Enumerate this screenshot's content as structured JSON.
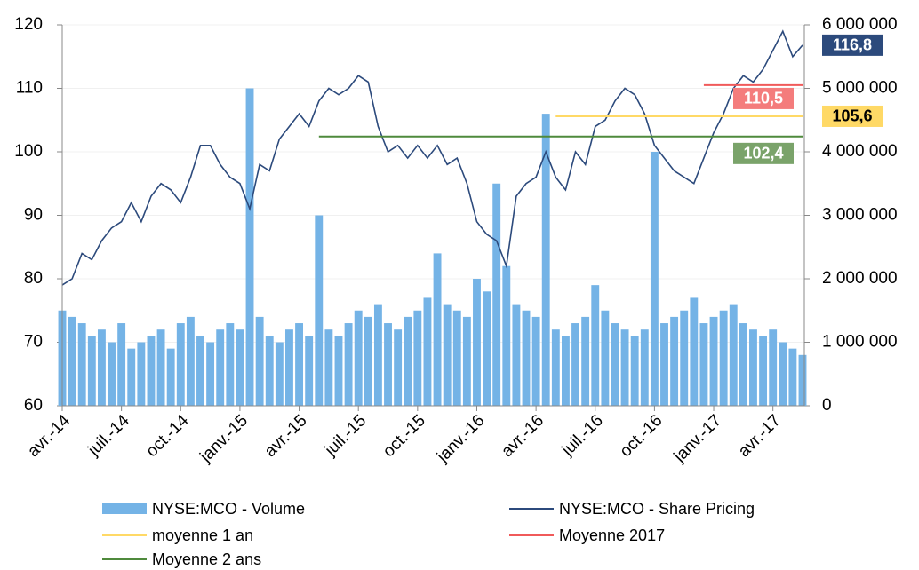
{
  "chart_data": {
    "type": "bar-line",
    "categories": [
      "avr.-14",
      null,
      null,
      null,
      null,
      null,
      "juil.-14",
      null,
      null,
      null,
      null,
      null,
      "oct.-14",
      null,
      null,
      null,
      null,
      null,
      "janv.-15",
      null,
      null,
      null,
      null,
      null,
      "avr.-15",
      null,
      null,
      null,
      null,
      null,
      "juil.-15",
      null,
      null,
      null,
      null,
      null,
      "oct.-15",
      null,
      null,
      null,
      null,
      null,
      "janv.-16",
      null,
      null,
      null,
      null,
      null,
      "avr.-16",
      null,
      null,
      null,
      null,
      null,
      "juil.-16",
      null,
      null,
      null,
      null,
      null,
      "oct.-16",
      null,
      null,
      null,
      null,
      null,
      "janv.-17",
      null,
      null,
      null,
      null,
      null,
      "avr.-17",
      null,
      null,
      null
    ],
    "series": [
      {
        "name": "NYSE:MCO - Volume",
        "type": "bar",
        "axis": "y2",
        "color": "#74b3e6",
        "values": [
          1500000,
          1400000,
          1300000,
          1100000,
          1200000,
          1000000,
          1300000,
          900000,
          1000000,
          1100000,
          1200000,
          900000,
          1300000,
          1400000,
          1100000,
          1000000,
          1200000,
          1300000,
          1200000,
          5000000,
          1400000,
          1100000,
          1000000,
          1200000,
          1300000,
          1100000,
          3000000,
          1200000,
          1100000,
          1300000,
          1500000,
          1400000,
          1600000,
          1300000,
          1200000,
          1400000,
          1500000,
          1700000,
          2400000,
          1600000,
          1500000,
          1400000,
          2000000,
          1800000,
          3500000,
          2200000,
          1600000,
          1500000,
          1400000,
          4600000,
          1200000,
          1100000,
          1300000,
          1400000,
          1900000,
          1500000,
          1300000,
          1200000,
          1100000,
          1200000,
          4000000,
          1300000,
          1400000,
          1500000,
          1700000,
          1300000,
          1400000,
          1500000,
          1600000,
          1300000,
          1200000,
          1100000,
          1200000,
          1000000,
          900000,
          800000
        ]
      },
      {
        "name": "NYSE:MCO - Share Pricing",
        "type": "line",
        "color": "#2c4a7c",
        "label_color": "#2c4a7c",
        "value_label": "116,8",
        "values": [
          79,
          80,
          84,
          83,
          86,
          88,
          89,
          92,
          89,
          93,
          95,
          94,
          92,
          96,
          101,
          101,
          98,
          96,
          95,
          91,
          98,
          97,
          102,
          104,
          106,
          104,
          108,
          110,
          109,
          110,
          112,
          111,
          104,
          100,
          101,
          99,
          101,
          99,
          101,
          98,
          99,
          95,
          89,
          87,
          86,
          82,
          93,
          95,
          96,
          100,
          96,
          94,
          100,
          98,
          104,
          105,
          108,
          110,
          109,
          106,
          101,
          99,
          97,
          96,
          95,
          99,
          103,
          106,
          110,
          112,
          111,
          113,
          116,
          119,
          115,
          116.8
        ]
      },
      {
        "name": "moyenne 1 an",
        "type": "line",
        "color": "#ffd966",
        "label_color": "#ffd966",
        "value_label": "105,6",
        "values": [
          null,
          null,
          null,
          null,
          null,
          null,
          null,
          null,
          null,
          null,
          null,
          null,
          null,
          null,
          null,
          null,
          null,
          null,
          null,
          null,
          null,
          null,
          null,
          null,
          null,
          null,
          null,
          null,
          null,
          null,
          null,
          null,
          null,
          null,
          null,
          null,
          null,
          null,
          null,
          null,
          null,
          null,
          null,
          null,
          null,
          null,
          null,
          null,
          null,
          null,
          105.6,
          105.6,
          105.6,
          105.6,
          105.6,
          105.6,
          105.6,
          105.6,
          105.6,
          105.6,
          105.6,
          105.6,
          105.6,
          105.6,
          105.6,
          105.6,
          105.6,
          105.6,
          105.6,
          105.6,
          105.6,
          105.6,
          105.6,
          105.6,
          105.6,
          105.6
        ]
      },
      {
        "name": "Moyenne 2017",
        "type": "line",
        "color": "#f05a5a",
        "label_color": "#f47c7c",
        "value_label": "110,5",
        "values": [
          null,
          null,
          null,
          null,
          null,
          null,
          null,
          null,
          null,
          null,
          null,
          null,
          null,
          null,
          null,
          null,
          null,
          null,
          null,
          null,
          null,
          null,
          null,
          null,
          null,
          null,
          null,
          null,
          null,
          null,
          null,
          null,
          null,
          null,
          null,
          null,
          null,
          null,
          null,
          null,
          null,
          null,
          null,
          null,
          null,
          null,
          null,
          null,
          null,
          null,
          null,
          null,
          null,
          null,
          null,
          null,
          null,
          null,
          null,
          null,
          null,
          null,
          null,
          null,
          null,
          110.5,
          110.5,
          110.5,
          110.5,
          110.5,
          110.5,
          110.5,
          110.5,
          110.5,
          110.5,
          110.5
        ]
      },
      {
        "name": "Moyenne 2 ans",
        "type": "line",
        "color": "#4f8a3c",
        "label_color": "#7aa36a",
        "value_label": "102,4",
        "values": [
          null,
          null,
          null,
          null,
          null,
          null,
          null,
          null,
          null,
          null,
          null,
          null,
          null,
          null,
          null,
          null,
          null,
          null,
          null,
          null,
          null,
          null,
          null,
          null,
          null,
          null,
          102.4,
          102.4,
          102.4,
          102.4,
          102.4,
          102.4,
          102.4,
          102.4,
          102.4,
          102.4,
          102.4,
          102.4,
          102.4,
          102.4,
          102.4,
          102.4,
          102.4,
          102.4,
          102.4,
          102.4,
          102.4,
          102.4,
          102.4,
          102.4,
          102.4,
          102.4,
          102.4,
          102.4,
          102.4,
          102.4,
          102.4,
          102.4,
          102.4,
          102.4,
          102.4,
          102.4,
          102.4,
          102.4,
          102.4,
          102.4,
          102.4,
          102.4,
          102.4,
          102.4,
          102.4,
          102.4,
          102.4,
          102.4,
          102.4,
          102.4
        ]
      }
    ],
    "ylim": [
      60,
      120
    ],
    "yticks": [
      60,
      70,
      80,
      90,
      100,
      110,
      120
    ],
    "y2lim": [
      0,
      6000000
    ],
    "y2ticks": [
      0,
      {
        "value": 1000000,
        "label": "1 000 000"
      },
      {
        "value": 2000000,
        "label": "2 000 000"
      },
      {
        "value": 3000000,
        "label": "3 000 000"
      },
      {
        "value": 4000000,
        "label": "4 000 000"
      },
      {
        "value": 5000000,
        "label": "5 000 000"
      },
      {
        "value": 6000000,
        "label": "6 000 000"
      }
    ],
    "grid": true,
    "legend": "bottom"
  }
}
